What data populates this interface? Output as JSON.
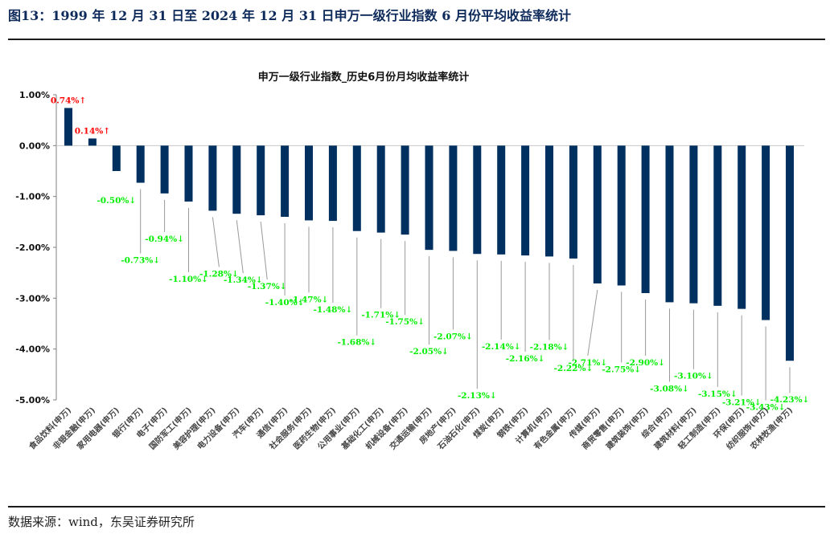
{
  "figure_title": "图13：1999 年 12 月 31 日至 2024 年 12 月 31 日申万一级行业指数 6 月份平均收益率统计",
  "source": "数据来源：wind，东吴证券研究所",
  "colors": {
    "bar": "#00305f",
    "positive_label": "#ff0000",
    "negative_label": "#00ee00",
    "leader": "#999999",
    "axis": "#7f7f7f"
  },
  "chart_data": {
    "type": "bar",
    "title": "申万一级行业指数_历史6月份月均收益率统计",
    "xlabel": "",
    "ylabel": "",
    "ylim": [
      -5,
      1
    ],
    "yticks": [
      "1.00%",
      "0.00%",
      "-1.00%",
      "-2.00%",
      "-3.00%",
      "-4.00%",
      "-5.00%"
    ],
    "grid": false,
    "legend": "none",
    "categories": [
      "食品饮料(申万)",
      "非银金融(申万)",
      "家用电器(申万)",
      "银行(申万)",
      "电子(申万)",
      "国防军工(申万)",
      "美容护理(申万)",
      "电力设备(申万)",
      "汽车(申万)",
      "通信(申万)",
      "社会服务(申万)",
      "医药生物(申万)",
      "公用事业(申万)",
      "基础化工(申万)",
      "机械设备(申万)",
      "交通运输(申万)",
      "房地产(申万)",
      "石油石化(申万)",
      "煤炭(申万)",
      "钢铁(申万)",
      "计算机(申万)",
      "有色金属(申万)",
      "传媒(申万)",
      "商贸零售(申万)",
      "建筑装饰(申万)",
      "综合(申万)",
      "建筑材料(申万)",
      "轻工制造(申万)",
      "环保(申万)",
      "纺织服饰(申万)",
      "农林牧渔(申万)"
    ],
    "values": [
      0.74,
      0.14,
      -0.5,
      -0.73,
      -0.94,
      -1.1,
      -1.28,
      -1.34,
      -1.37,
      -1.4,
      -1.47,
      -1.48,
      -1.68,
      -1.71,
      -1.75,
      -2.05,
      -2.07,
      -2.13,
      -2.14,
      -2.16,
      -2.18,
      -2.22,
      -2.71,
      -2.75,
      -2.9,
      -3.08,
      -3.1,
      -3.15,
      -3.21,
      -3.43,
      -4.23
    ],
    "data_labels": [
      "0.74%↑",
      "0.14%↑",
      "-0.50%↓",
      "-0.73%↓",
      "-0.94%↓",
      "-1.10%↓",
      "-1.28%↓",
      "-1.34%↓",
      "-1.37%↓",
      "-1.40%↓",
      "-1.47%↓",
      "-1.48%↓",
      "-1.68%↓",
      "-1.71%↓",
      "-1.75%↓",
      "-2.05%↓",
      "-2.07%↓",
      "-2.13%↓",
      "-2.14%↓",
      "-2.16%↓",
      "-2.18%↓",
      "-2.22%↓",
      "-2.71%↓",
      "-2.75%↓",
      "-2.90%↓",
      "-3.08%↓",
      "-3.10%↓",
      "-3.15%↓",
      "-3.21%↓",
      "-3.43%↓",
      "-4.23%↓"
    ]
  }
}
